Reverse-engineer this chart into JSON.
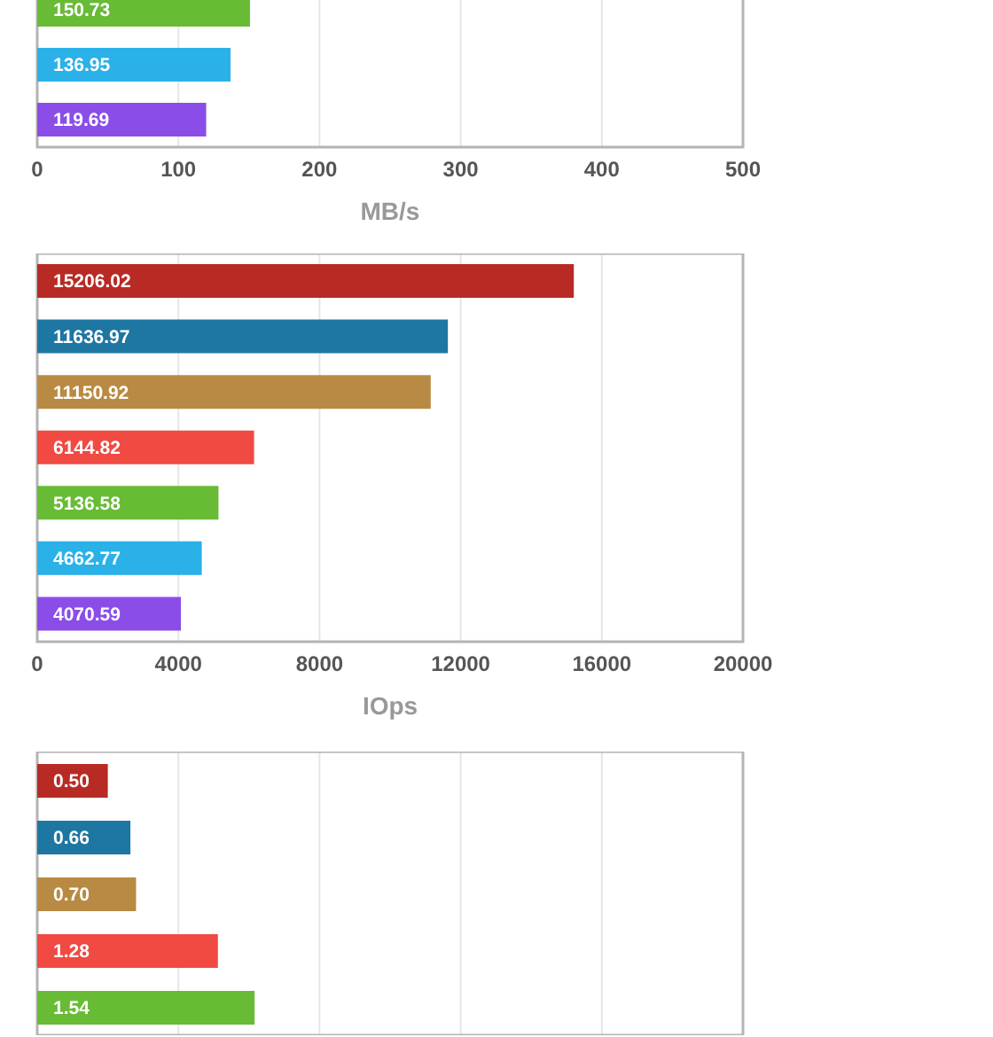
{
  "chart_data": [
    {
      "type": "bar",
      "orientation": "horizontal",
      "categories": [
        null,
        null,
        null
      ],
      "values": [
        150.73,
        136.95,
        119.69
      ],
      "value_labels": [
        "150.73",
        "136.95",
        "119.69"
      ],
      "colors": [
        "#67bb35",
        "#2ab1e8",
        "#8a4de8"
      ],
      "xlim": [
        0,
        500
      ],
      "xticks": [
        0,
        100,
        200,
        300,
        400,
        500
      ],
      "xlabel": "MB/s",
      "grid": "x",
      "legend": false
    },
    {
      "type": "bar",
      "orientation": "horizontal",
      "categories": [
        null,
        null,
        null,
        null,
        null,
        null,
        null
      ],
      "values": [
        15206.02,
        11636.97,
        11150.92,
        6144.82,
        5136.58,
        4662.77,
        4070.59
      ],
      "value_labels": [
        "15206.02",
        "11636.97",
        "11150.92",
        "6144.82",
        "5136.58",
        "4662.77",
        "4070.59"
      ],
      "colors": [
        "#b72b24",
        "#1e76a2",
        "#b98a43",
        "#f04a43",
        "#67bb35",
        "#2ab1e8",
        "#8a4de8"
      ],
      "xlim": [
        0,
        20000
      ],
      "xticks": [
        0,
        4000,
        8000,
        12000,
        16000,
        20000
      ],
      "xlabel": "IOps",
      "grid": "x",
      "legend": false
    },
    {
      "type": "bar",
      "orientation": "horizontal",
      "categories": [
        null,
        null,
        null,
        null,
        null
      ],
      "values": [
        0.5,
        0.66,
        0.7,
        1.28,
        1.54
      ],
      "value_labels": [
        "0.50",
        "0.66",
        "0.70",
        "1.28",
        "1.54"
      ],
      "colors": [
        "#b72b24",
        "#1e76a2",
        "#b98a43",
        "#f04a43",
        "#67bb35"
      ],
      "xlim": [
        0,
        5
      ],
      "xticks": [
        0,
        1,
        2,
        3,
        4,
        5
      ],
      "tick_labels": false,
      "grid": "x",
      "legend": false
    }
  ]
}
